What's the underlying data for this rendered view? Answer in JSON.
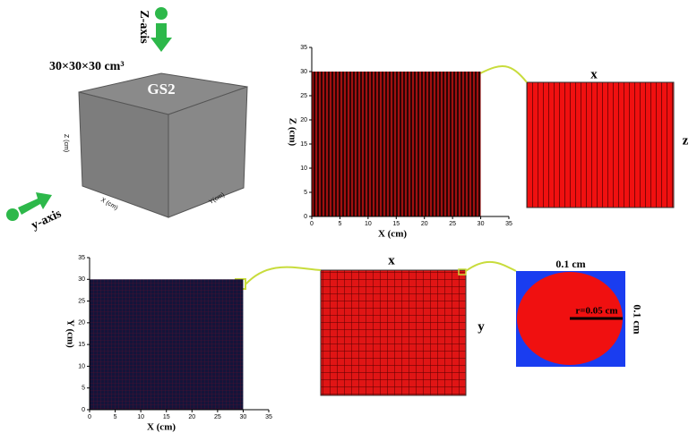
{
  "cube": {
    "label": "GS2",
    "size_label": "30×30×30 cm³",
    "z_axis_label": "Z (cm)",
    "x_axis_label": "X (cm)",
    "y_axis_label": "Y(cm)"
  },
  "arrows": {
    "z": "Z-axis",
    "y": "y-axis"
  },
  "xz_plot": {
    "xlabel": "X (cm)",
    "ylabel": "Z (cm)",
    "xlim": [
      0,
      35
    ],
    "ylim": [
      0,
      35
    ],
    "xticks": [
      0,
      5,
      10,
      15,
      20,
      25,
      30,
      35
    ],
    "yticks": [
      0,
      5,
      10,
      15,
      20,
      25,
      30,
      35
    ],
    "region_x": [
      0,
      30
    ],
    "region_y": [
      0,
      30
    ]
  },
  "xz_zoom": {
    "top": "x",
    "right": "z"
  },
  "xy_plot": {
    "xlabel": "X (cm)",
    "ylabel": "Y (cm)",
    "xlim": [
      0,
      35
    ],
    "ylim": [
      0,
      35
    ],
    "xticks": [
      0,
      5,
      10,
      15,
      20,
      25,
      30,
      35
    ],
    "yticks": [
      0,
      5,
      10,
      15,
      20,
      25,
      30,
      35
    ],
    "region_x": [
      0,
      30
    ],
    "region_y": [
      0,
      30
    ]
  },
  "xy_zoom": {
    "top": "x",
    "right": "y"
  },
  "pixel": {
    "width_label": "0.1 cm",
    "height_label": "0.1 cm",
    "radius_label": "r=0.05 cm"
  }
}
